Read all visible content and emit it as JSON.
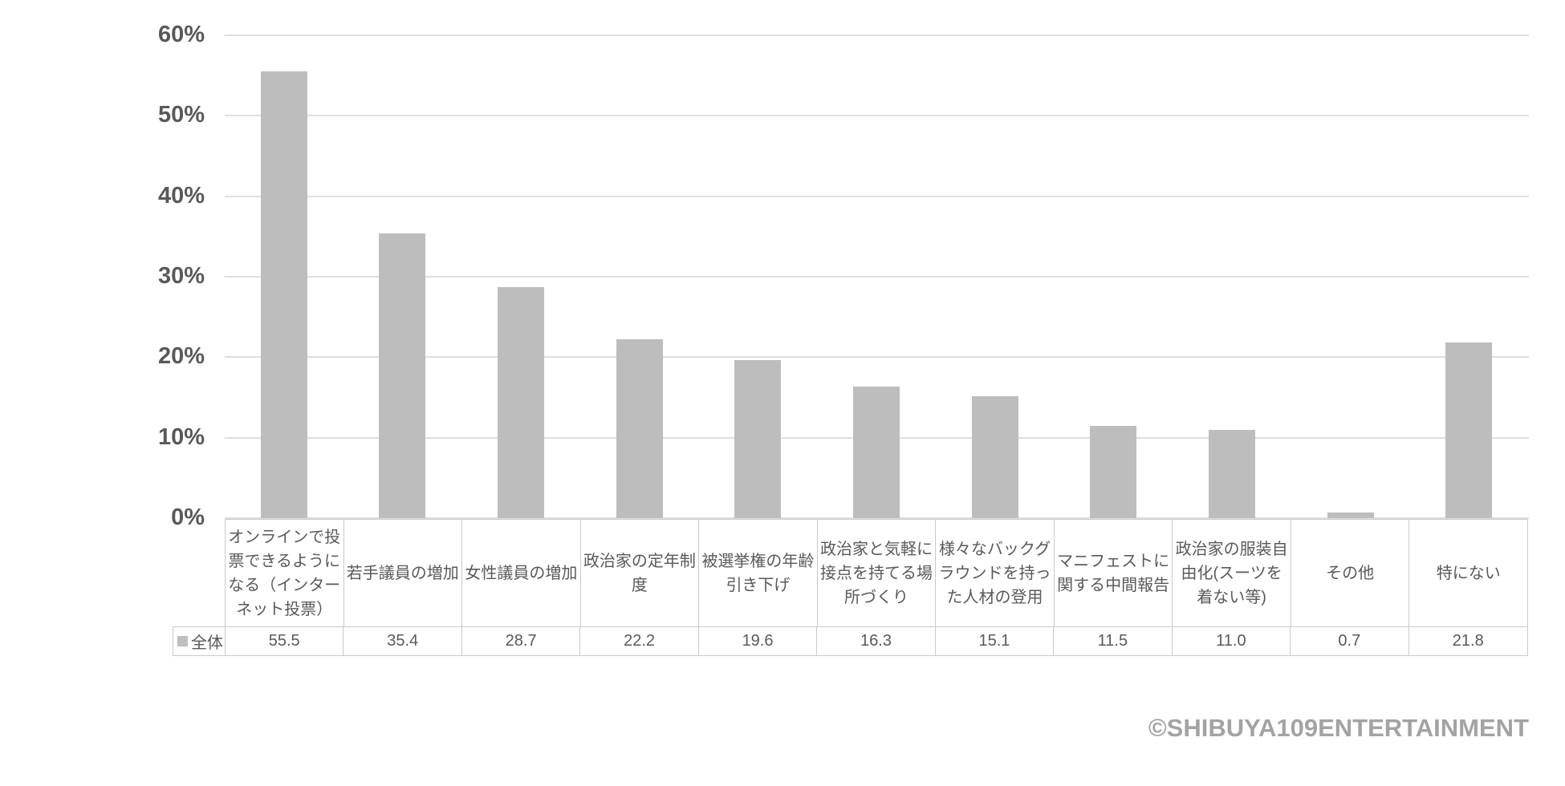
{
  "chart_data": {
    "type": "bar",
    "categories": [
      "オンラインで投票できるようになる（インターネット投票）",
      "若手議員の増加",
      "女性議員の増加",
      "政治家の定年制度",
      "被選挙権の年齢引き下げ",
      "政治家と気軽に接点を持てる場所づくり",
      "様々なバックグラウンドを持った人材の登用",
      "マニフェストに関する中間報告",
      "政治家の服装自由化(スーツを着ない等)",
      "その他",
      "特にない"
    ],
    "series": [
      {
        "name": "全体",
        "values": [
          55.5,
          35.4,
          28.7,
          22.2,
          19.6,
          16.3,
          15.1,
          11.5,
          11.0,
          0.7,
          21.8
        ]
      }
    ],
    "title": "",
    "xlabel": "",
    "ylabel": "",
    "ylim": [
      0,
      60
    ],
    "ytick_labels": [
      "0%",
      "10%",
      "20%",
      "30%",
      "40%",
      "50%",
      "60%"
    ],
    "grid": true,
    "legend_position": "table-left",
    "bar_color": "#bdbdbd",
    "data_table_shown": true
  },
  "footer": {
    "copyright": "©SHIBUYA109ENTERTAINMENT"
  },
  "colors": {
    "bar": "#bdbdbd",
    "gridline": "#dedede",
    "axis_text": "#595959",
    "table_border": "#c9c9c9",
    "table_text": "#595959",
    "legend_marker": "#bfbfbf",
    "copyright_text": "#a3a3a3"
  }
}
